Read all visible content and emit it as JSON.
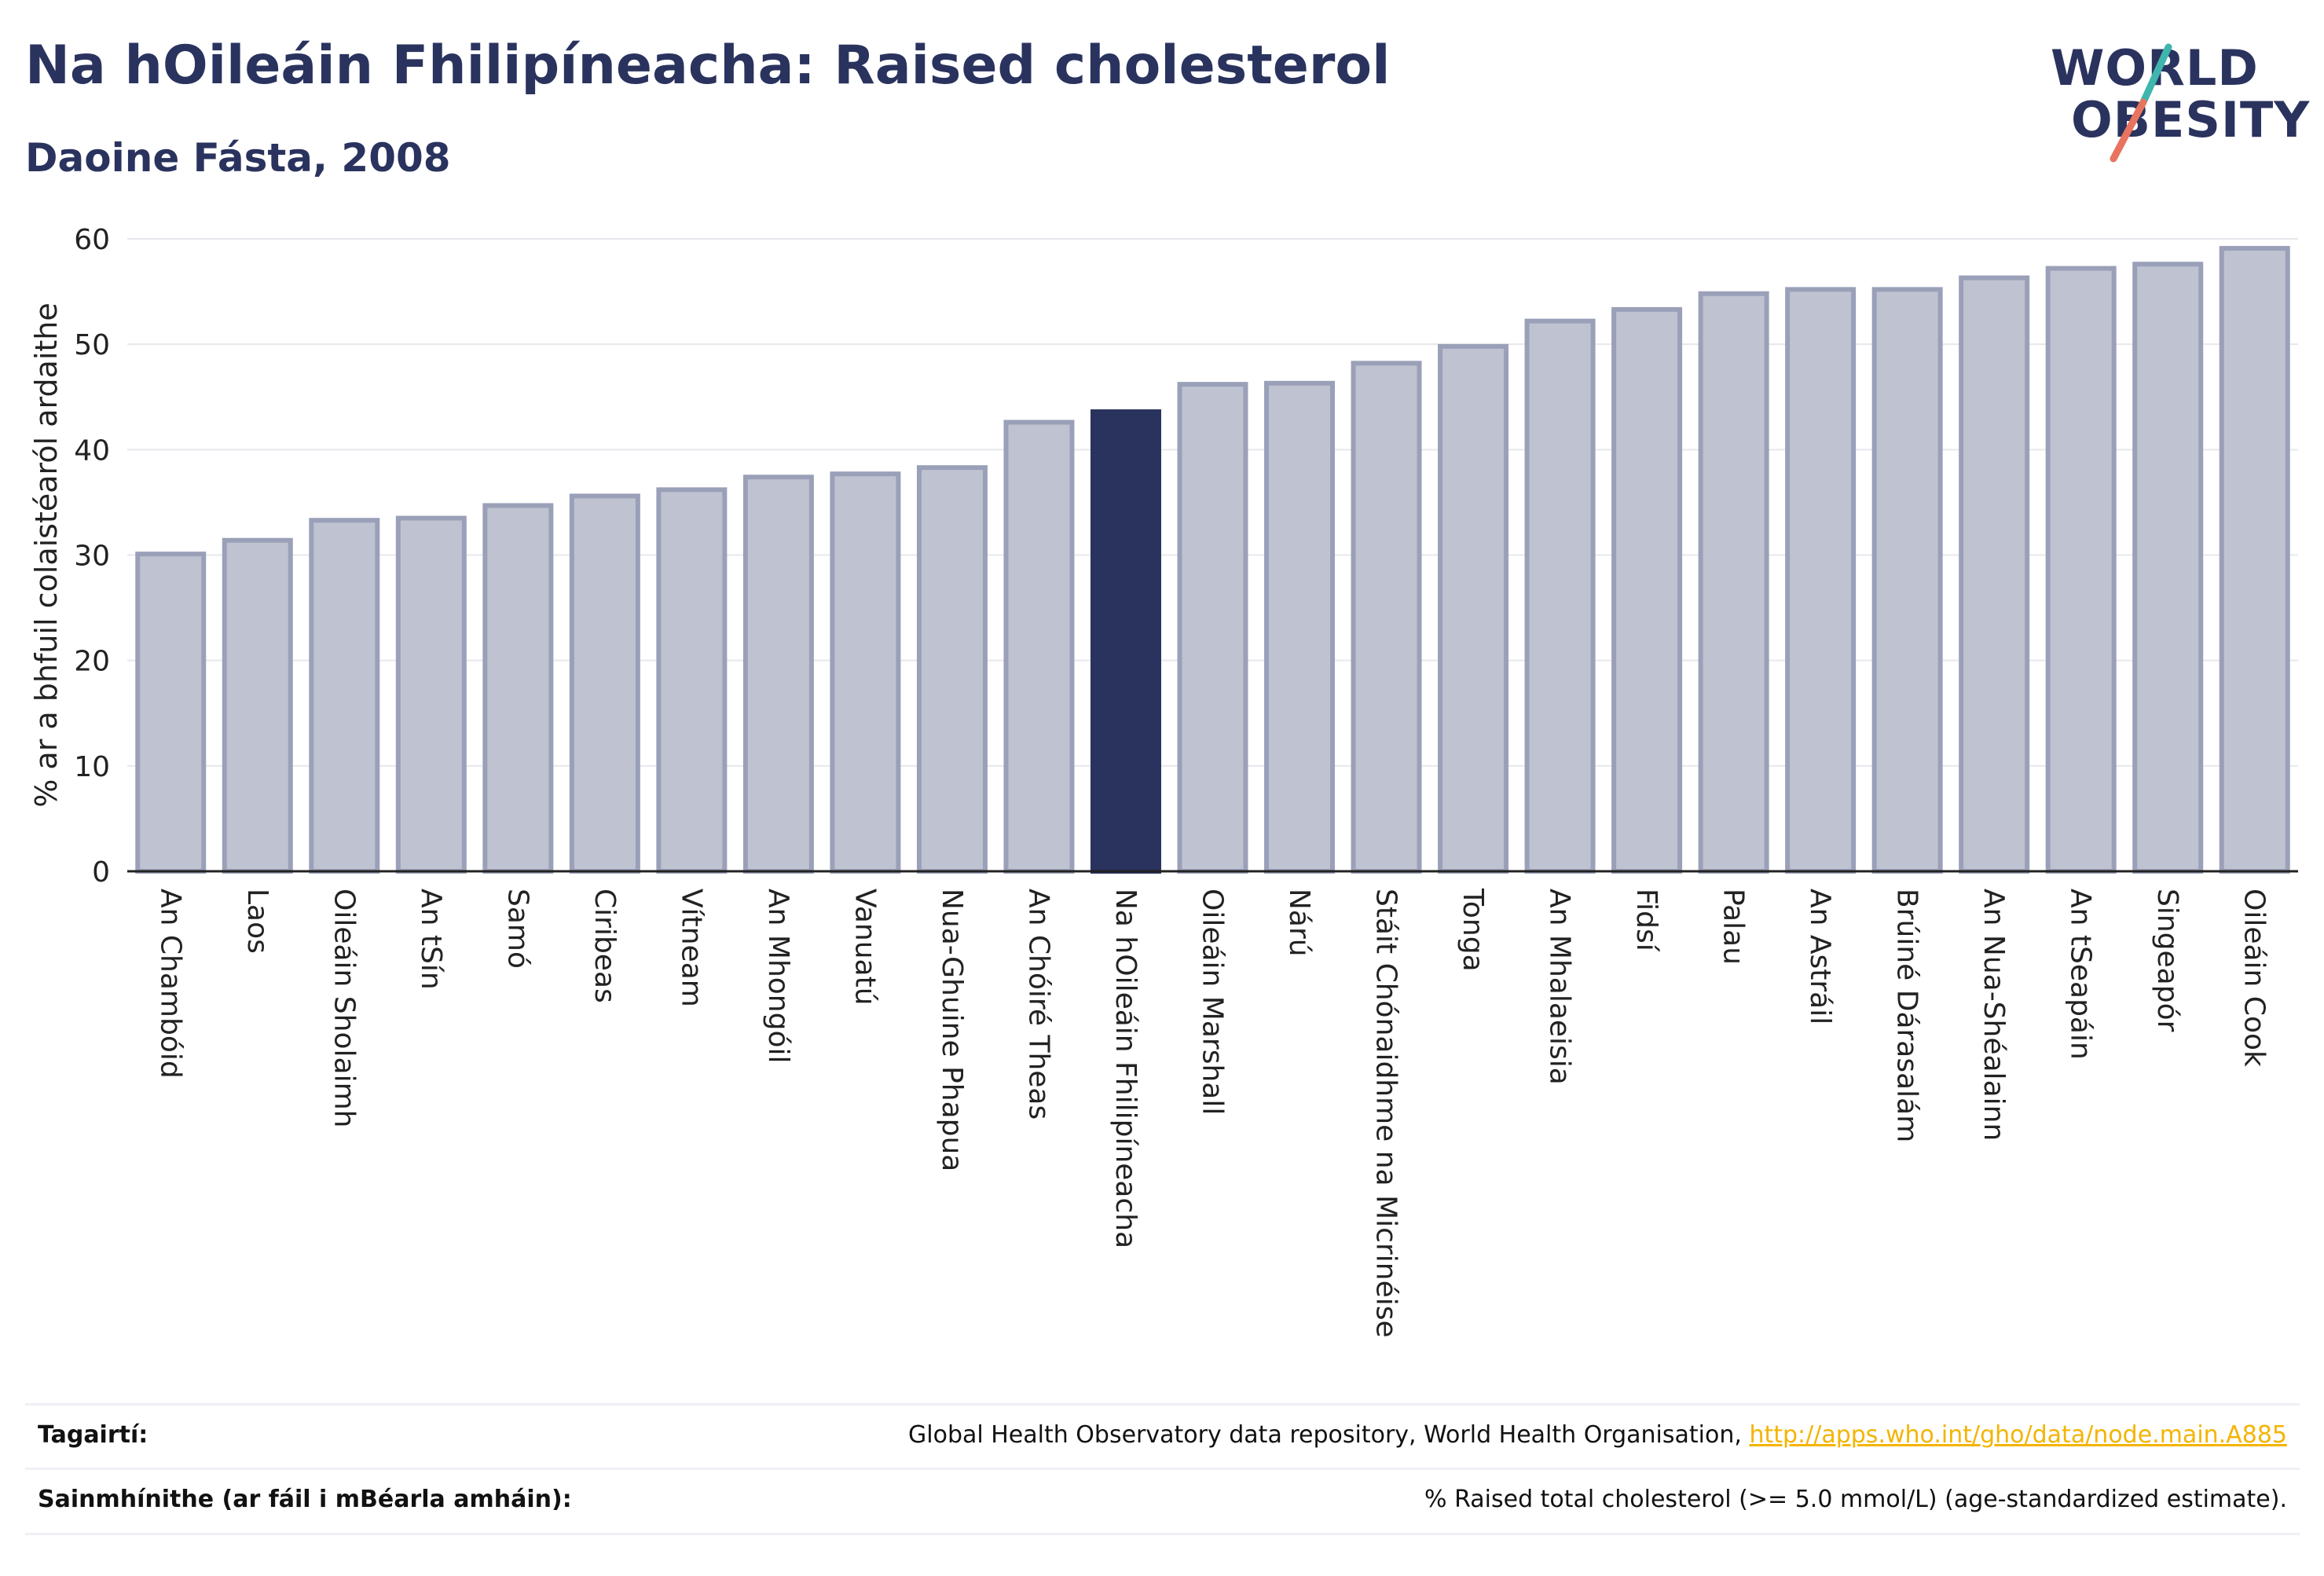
{
  "header": {
    "title": "Na hOileáin Fhilipíneacha: Raised cholesterol",
    "subtitle": "Daoine Fásta, 2008"
  },
  "logo": {
    "line1": "WORLD",
    "line2": "OBESITY",
    "accent_teal": "#3fb5ad",
    "accent_coral": "#e8745f"
  },
  "colors": {
    "bar_default": "#bfc2d0",
    "bar_border": "#9aa0b8",
    "bar_highlight": "#2a335e",
    "grid": "#e6e8ee",
    "axis": "#222222"
  },
  "chart_data": {
    "type": "bar",
    "ylabel": "% ar a bhfuil colaistéaról ardaithe",
    "ylim": [
      0,
      60
    ],
    "yticks": [
      0,
      10,
      20,
      30,
      40,
      50,
      60
    ],
    "grid": true,
    "highlight": "Na hOileáin Fhilipíneacha",
    "categories": [
      "An Chambóid",
      "Laos",
      "Oileáin Sholaimh",
      "An tSín",
      "Samó",
      "Ciribeas",
      "Vítneam",
      "An Mhongóil",
      "Vanuatú",
      "Nua-Ghuine Phapua",
      "An Chóiré Theas",
      "Na hOileáin Fhilipíneacha",
      "Oileáin Marshall",
      "Nárú",
      "Stáit Chónaidhme na Micrinéise",
      "Tonga",
      "An Mhalaeisia",
      "Fidsí",
      "Palau",
      "An Astráil",
      "Brúiné Dárasalám",
      "An Nua-Shéalainn",
      "An tSeapáin",
      "Singeapór",
      "Oileáin Cook"
    ],
    "values": [
      30.1,
      31.4,
      33.3,
      33.5,
      34.7,
      35.6,
      36.2,
      37.4,
      37.7,
      38.3,
      42.6,
      43.6,
      46.2,
      46.3,
      48.2,
      49.8,
      52.2,
      53.3,
      54.8,
      55.2,
      55.2,
      56.3,
      57.2,
      57.6,
      59.1
    ]
  },
  "references": {
    "sources_label": "Tagairtí:",
    "sources_text": "Global Health Observatory data repository, World Health Organisation, ",
    "sources_link": "http://apps.who.int/gho/data/node.main.A885",
    "definition_label": "Sainmhínithe (ar fáil i mBéarla amháin):",
    "definition_text": "% Raised total cholesterol (>= 5.0 mmol/L) (age-standardized estimate)."
  }
}
